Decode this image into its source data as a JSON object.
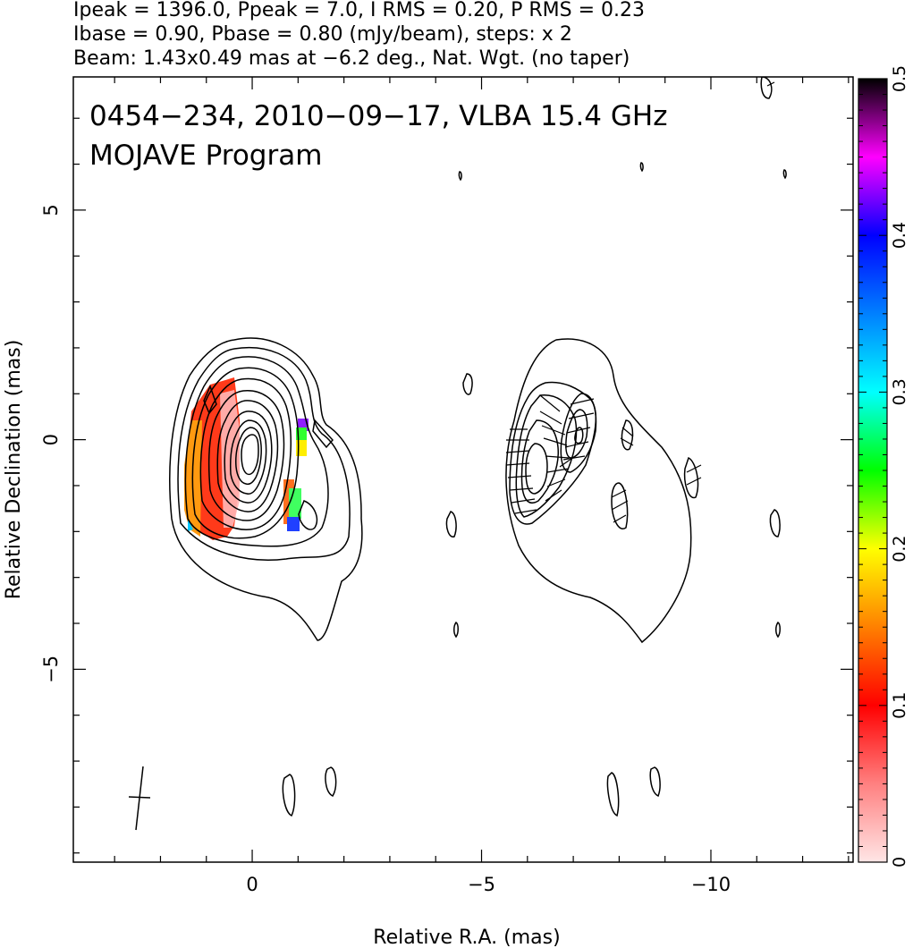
{
  "header": {
    "line1": "Ipeak = 1396.0, Ppeak = 7.0, I RMS = 0.20, P RMS = 0.23",
    "line2": "Ibase = 0.90, Pbase = 0.80 (mJy/beam), steps: x 2",
    "line3": "Beam: 1.43x0.49 mas at −6.2 deg., Nat. Wgt. (no taper)"
  },
  "chart_data": {
    "type": "contour",
    "title": "0454−234, 2010−09−17, VLBA 15.4 GHz",
    "subtitle": "MOJAVE Program",
    "xlabel": "Relative R.A. (mas)",
    "ylabel": "Relative Declination (mas)",
    "xlim": [
      3.9,
      -13.1
    ],
    "ylim": [
      -9.2,
      7.9
    ],
    "x_ticks": [
      {
        "value": 0,
        "label": "0"
      },
      {
        "value": -5,
        "label": "−5"
      },
      {
        "value": -10,
        "label": "−10"
      }
    ],
    "y_ticks": [
      {
        "value": 5,
        "label": "5"
      },
      {
        "value": 0,
        "label": "0"
      },
      {
        "value": -5,
        "label": "−5"
      }
    ],
    "colorbar": {
      "range": [
        0,
        0.5
      ],
      "ticks": [
        {
          "value": 0,
          "label": "0"
        },
        {
          "value": 0.1,
          "label": "0.1"
        },
        {
          "value": 0.2,
          "label": "0.2"
        },
        {
          "value": 0.3,
          "label": "0.3"
        },
        {
          "value": 0.4,
          "label": "0.4"
        },
        {
          "value": 0.5,
          "label": "0.5"
        }
      ]
    },
    "peak": [
      0,
      0
    ],
    "contour_levels": 13,
    "beam": {
      "major_mas": 1.43,
      "minor_mas": 0.49,
      "pa_deg": -6.2
    }
  }
}
